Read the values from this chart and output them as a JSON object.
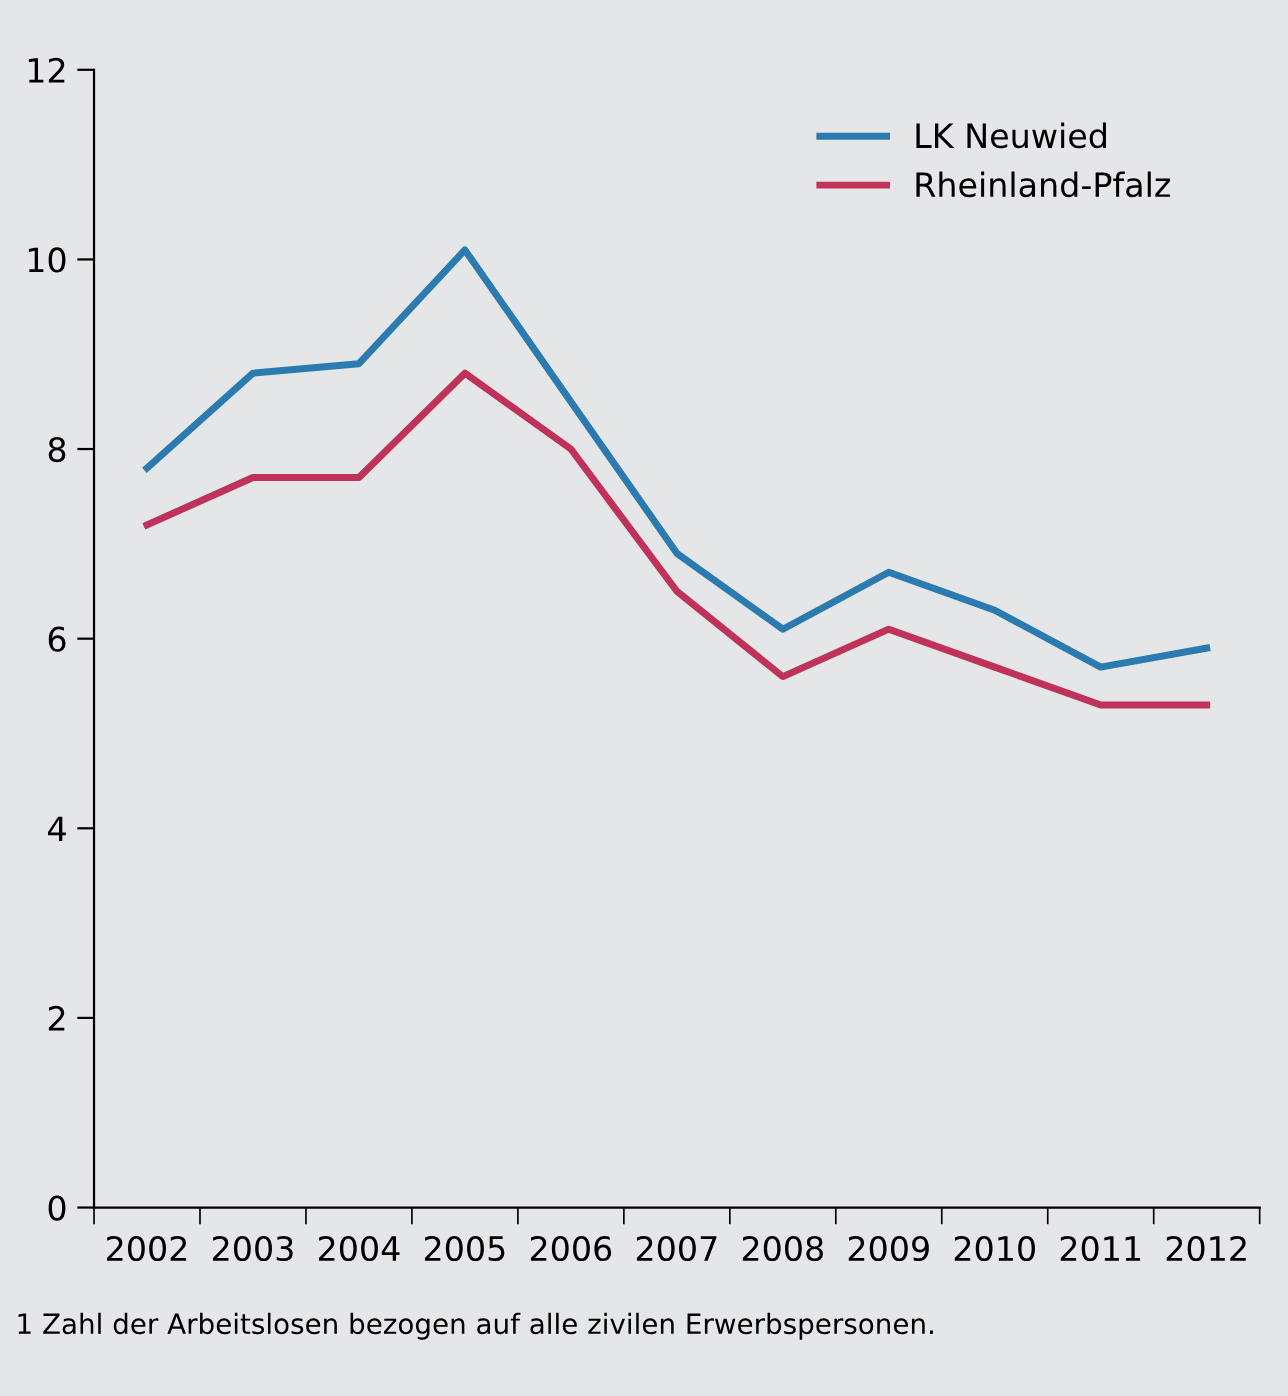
{
  "chart_data": {
    "type": "line",
    "categories": [
      "2002",
      "2003",
      "2004",
      "2005",
      "2006",
      "2007",
      "2008",
      "2009",
      "2010",
      "2011",
      "2012"
    ],
    "series": [
      {
        "name": "LK Neuwied",
        "color": "#2b7bb0",
        "values": [
          7.8,
          8.8,
          8.9,
          10.1,
          8.5,
          6.9,
          6.1,
          6.7,
          6.3,
          5.7,
          5.9
        ]
      },
      {
        "name": "Rheinland-Pfalz",
        "color": "#c0325a",
        "values": [
          7.2,
          7.7,
          7.7,
          8.8,
          8.0,
          6.5,
          5.6,
          6.1,
          5.7,
          5.3,
          5.3
        ]
      }
    ],
    "ylim": [
      0,
      12
    ],
    "yticks": [
      0,
      2,
      4,
      6,
      8,
      10,
      12
    ],
    "grid": false,
    "legend": "top right",
    "marker": "none",
    "line_style": "solid",
    "annotations": [
      "1 Zahl der Arbeitslosen bezogen auf alle zivilen Erwerbspersonen."
    ]
  }
}
